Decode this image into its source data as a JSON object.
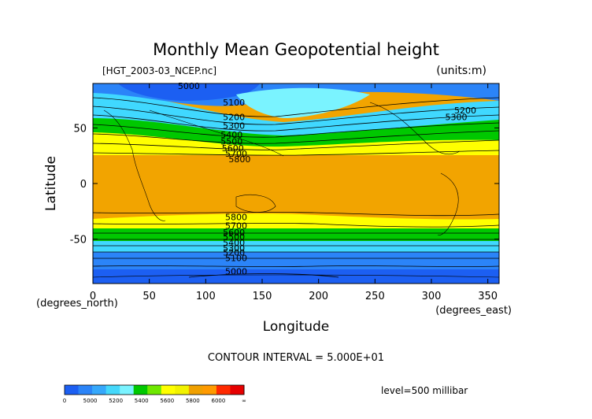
{
  "chart_data": {
    "type": "heatmap",
    "title": "Monthly Mean Geopotential height",
    "subtitle_left": "[HGT_2003-03_NCEP.nc]",
    "subtitle_right": "(units:m)",
    "xlabel": "Longitude",
    "ylabel": "Latitude",
    "x_unit_label": "(degrees_east)",
    "y_unit_label": "(degrees_north)",
    "xlim": [
      0,
      360
    ],
    "ylim": [
      -90,
      90
    ],
    "x_ticks": [
      0,
      50,
      100,
      150,
      200,
      250,
      300,
      350
    ],
    "y_ticks": [
      50,
      0,
      -50
    ],
    "contour_interval_text": "CONTOUR INTERVAL = 5.000E+01",
    "level_text": "level=500 millibar",
    "contour_labels": [
      {
        "text": "5000",
        "lon": 85,
        "lat": 88
      },
      {
        "text": "5100",
        "lon": 125,
        "lat": 73
      },
      {
        "text": "5200",
        "lon": 125,
        "lat": 60
      },
      {
        "text": "5300",
        "lon": 125,
        "lat": 52
      },
      {
        "text": "5400",
        "lon": 123,
        "lat": 44
      },
      {
        "text": "5500",
        "lon": 123,
        "lat": 38
      },
      {
        "text": "5600",
        "lon": 124,
        "lat": 32
      },
      {
        "text": "5700",
        "lon": 127,
        "lat": 27
      },
      {
        "text": "5800",
        "lon": 130,
        "lat": 22
      },
      {
        "text": "5200",
        "lon": 330,
        "lat": 66
      },
      {
        "text": "5300",
        "lon": 322,
        "lat": 60
      },
      {
        "text": "5800",
        "lon": 127,
        "lat": -30
      },
      {
        "text": "5700",
        "lon": 127,
        "lat": -38
      },
      {
        "text": "5600",
        "lon": 125,
        "lat": -44
      },
      {
        "text": "5500",
        "lon": 125,
        "lat": -48
      },
      {
        "text": "5400",
        "lon": 125,
        "lat": -53
      },
      {
        "text": "5300",
        "lon": 125,
        "lat": -58
      },
      {
        "text": "5200",
        "lon": 125,
        "lat": -62
      },
      {
        "text": "5100",
        "lon": 127,
        "lat": -67
      },
      {
        "text": "5000",
        "lon": 127,
        "lat": -79
      }
    ],
    "colorbar": {
      "colors": [
        "#1c5ff2",
        "#2b84f8",
        "#36a8fb",
        "#45d8fb",
        "#7af3ff",
        "#00c800",
        "#6ee800",
        "#ffff00",
        "#f2f200",
        "#f0a000",
        "#ff9a00",
        "#ff2a00",
        "#e60000"
      ],
      "tick_labels": [
        "0",
        "5000",
        "5200",
        "5400",
        "5600",
        "5800",
        "6000",
        "∞"
      ]
    }
  }
}
